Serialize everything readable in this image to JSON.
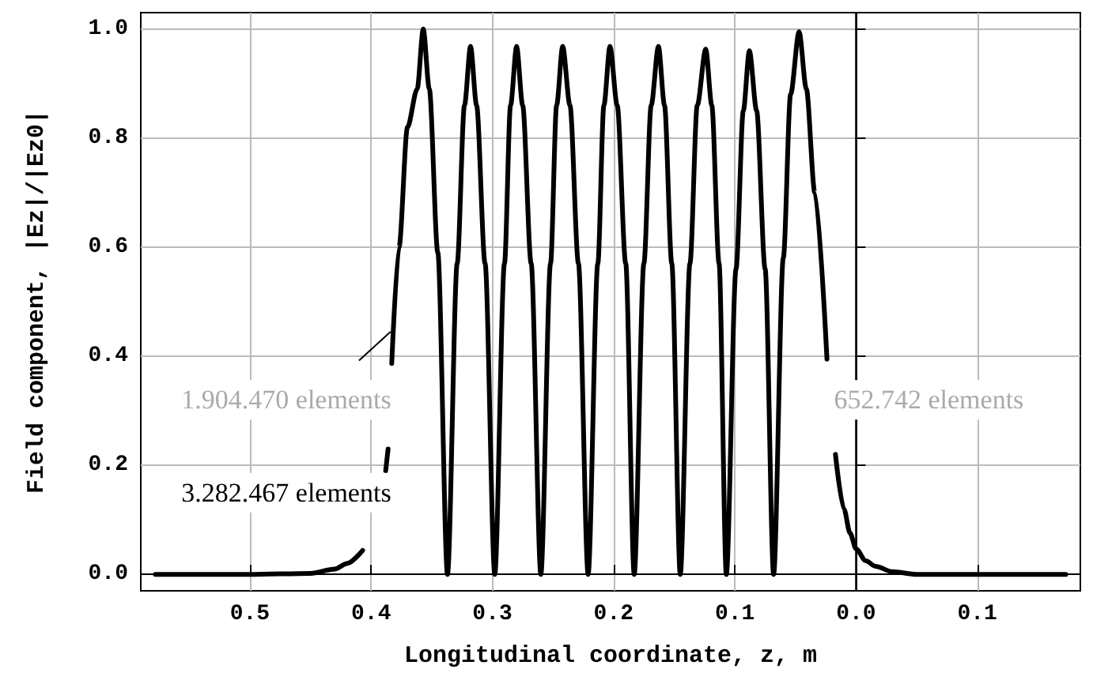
{
  "chart_data": {
    "type": "line",
    "xlabel": "Longitudinal coordinate, z, m",
    "ylabel": "Field component, |Ez|/|Ez0|",
    "annotations": [
      "1.904.470 elements",
      "3.282.467 elements",
      "652.742 elements"
    ],
    "series": [
      {
        "color": "#000000",
        "x": [
          -0.578,
          -0.5,
          -0.45,
          -0.43,
          -0.42,
          -0.407,
          -0.398,
          -0.388,
          -0.386,
          -0.385,
          -0.383,
          -0.377,
          -0.37,
          -0.362,
          -0.357,
          -0.352,
          -0.345,
          -0.337,
          -0.329,
          -0.323,
          -0.318,
          -0.313,
          -0.306,
          -0.298,
          -0.29,
          -0.285,
          -0.28,
          -0.275,
          -0.268,
          -0.26,
          -0.252,
          -0.247,
          -0.242,
          -0.236,
          -0.229,
          -0.221,
          -0.213,
          -0.208,
          -0.203,
          -0.197,
          -0.19,
          -0.183,
          -0.175,
          -0.169,
          -0.163,
          -0.158,
          -0.152,
          -0.145,
          -0.137,
          -0.131,
          -0.124,
          -0.119,
          -0.113,
          -0.107,
          -0.099,
          -0.093,
          -0.088,
          -0.082,
          -0.075,
          -0.068,
          -0.06,
          -0.054,
          -0.047,
          -0.041,
          -0.034,
          -0.024,
          -0.02,
          -0.017,
          -0.01,
          -0.005,
          0.0,
          0.008,
          0.016,
          0.03,
          0.05,
          0.173
        ],
        "values": [
          0,
          0,
          0.002,
          0.01,
          0.02,
          0.044,
          null,
          0.19,
          0.23,
          null,
          0.387,
          0.6,
          0.82,
          0.89,
          1.0,
          0.89,
          0.59,
          0,
          0.57,
          0.86,
          0.968,
          0.86,
          0.57,
          0,
          0.57,
          0.86,
          0.968,
          0.86,
          0.57,
          0,
          0.57,
          0.86,
          0.968,
          0.86,
          0.57,
          0,
          0.57,
          0.86,
          0.968,
          0.86,
          0.57,
          0,
          0.57,
          0.86,
          0.968,
          0.86,
          0.57,
          0,
          0.57,
          0.86,
          0.963,
          0.86,
          0.57,
          0,
          0.56,
          0.85,
          0.96,
          0.85,
          0.56,
          0,
          0.58,
          0.88,
          0.995,
          0.89,
          0.7,
          0.395,
          null,
          0.22,
          0.12,
          0.076,
          0.047,
          0.025,
          0.015,
          0.005,
          0,
          0
        ]
      }
    ],
    "xlim": [
      -0.59,
      0.185
    ],
    "xticks": [
      {
        "value": -0.5,
        "label": "0.5"
      },
      {
        "value": -0.4,
        "label": "0.4"
      },
      {
        "value": -0.3,
        "label": "0.3"
      },
      {
        "value": -0.2,
        "label": "0.2"
      },
      {
        "value": -0.1,
        "label": "0.1"
      },
      {
        "value": 0,
        "label": "0.0"
      },
      0.1
    ],
    "ylim": [
      -0.03,
      1.03
    ],
    "yticks": [
      {
        "value": 0,
        "label": "0.0"
      },
      0.2,
      0.4,
      0.6,
      0.8,
      {
        "value": 1,
        "label": "1.0"
      }
    ],
    "ref_lines": [
      {
        "axis": "x",
        "value": 0,
        "color": "#000000"
      }
    ],
    "grid": true,
    "marker": "none",
    "line_style": "solid"
  }
}
